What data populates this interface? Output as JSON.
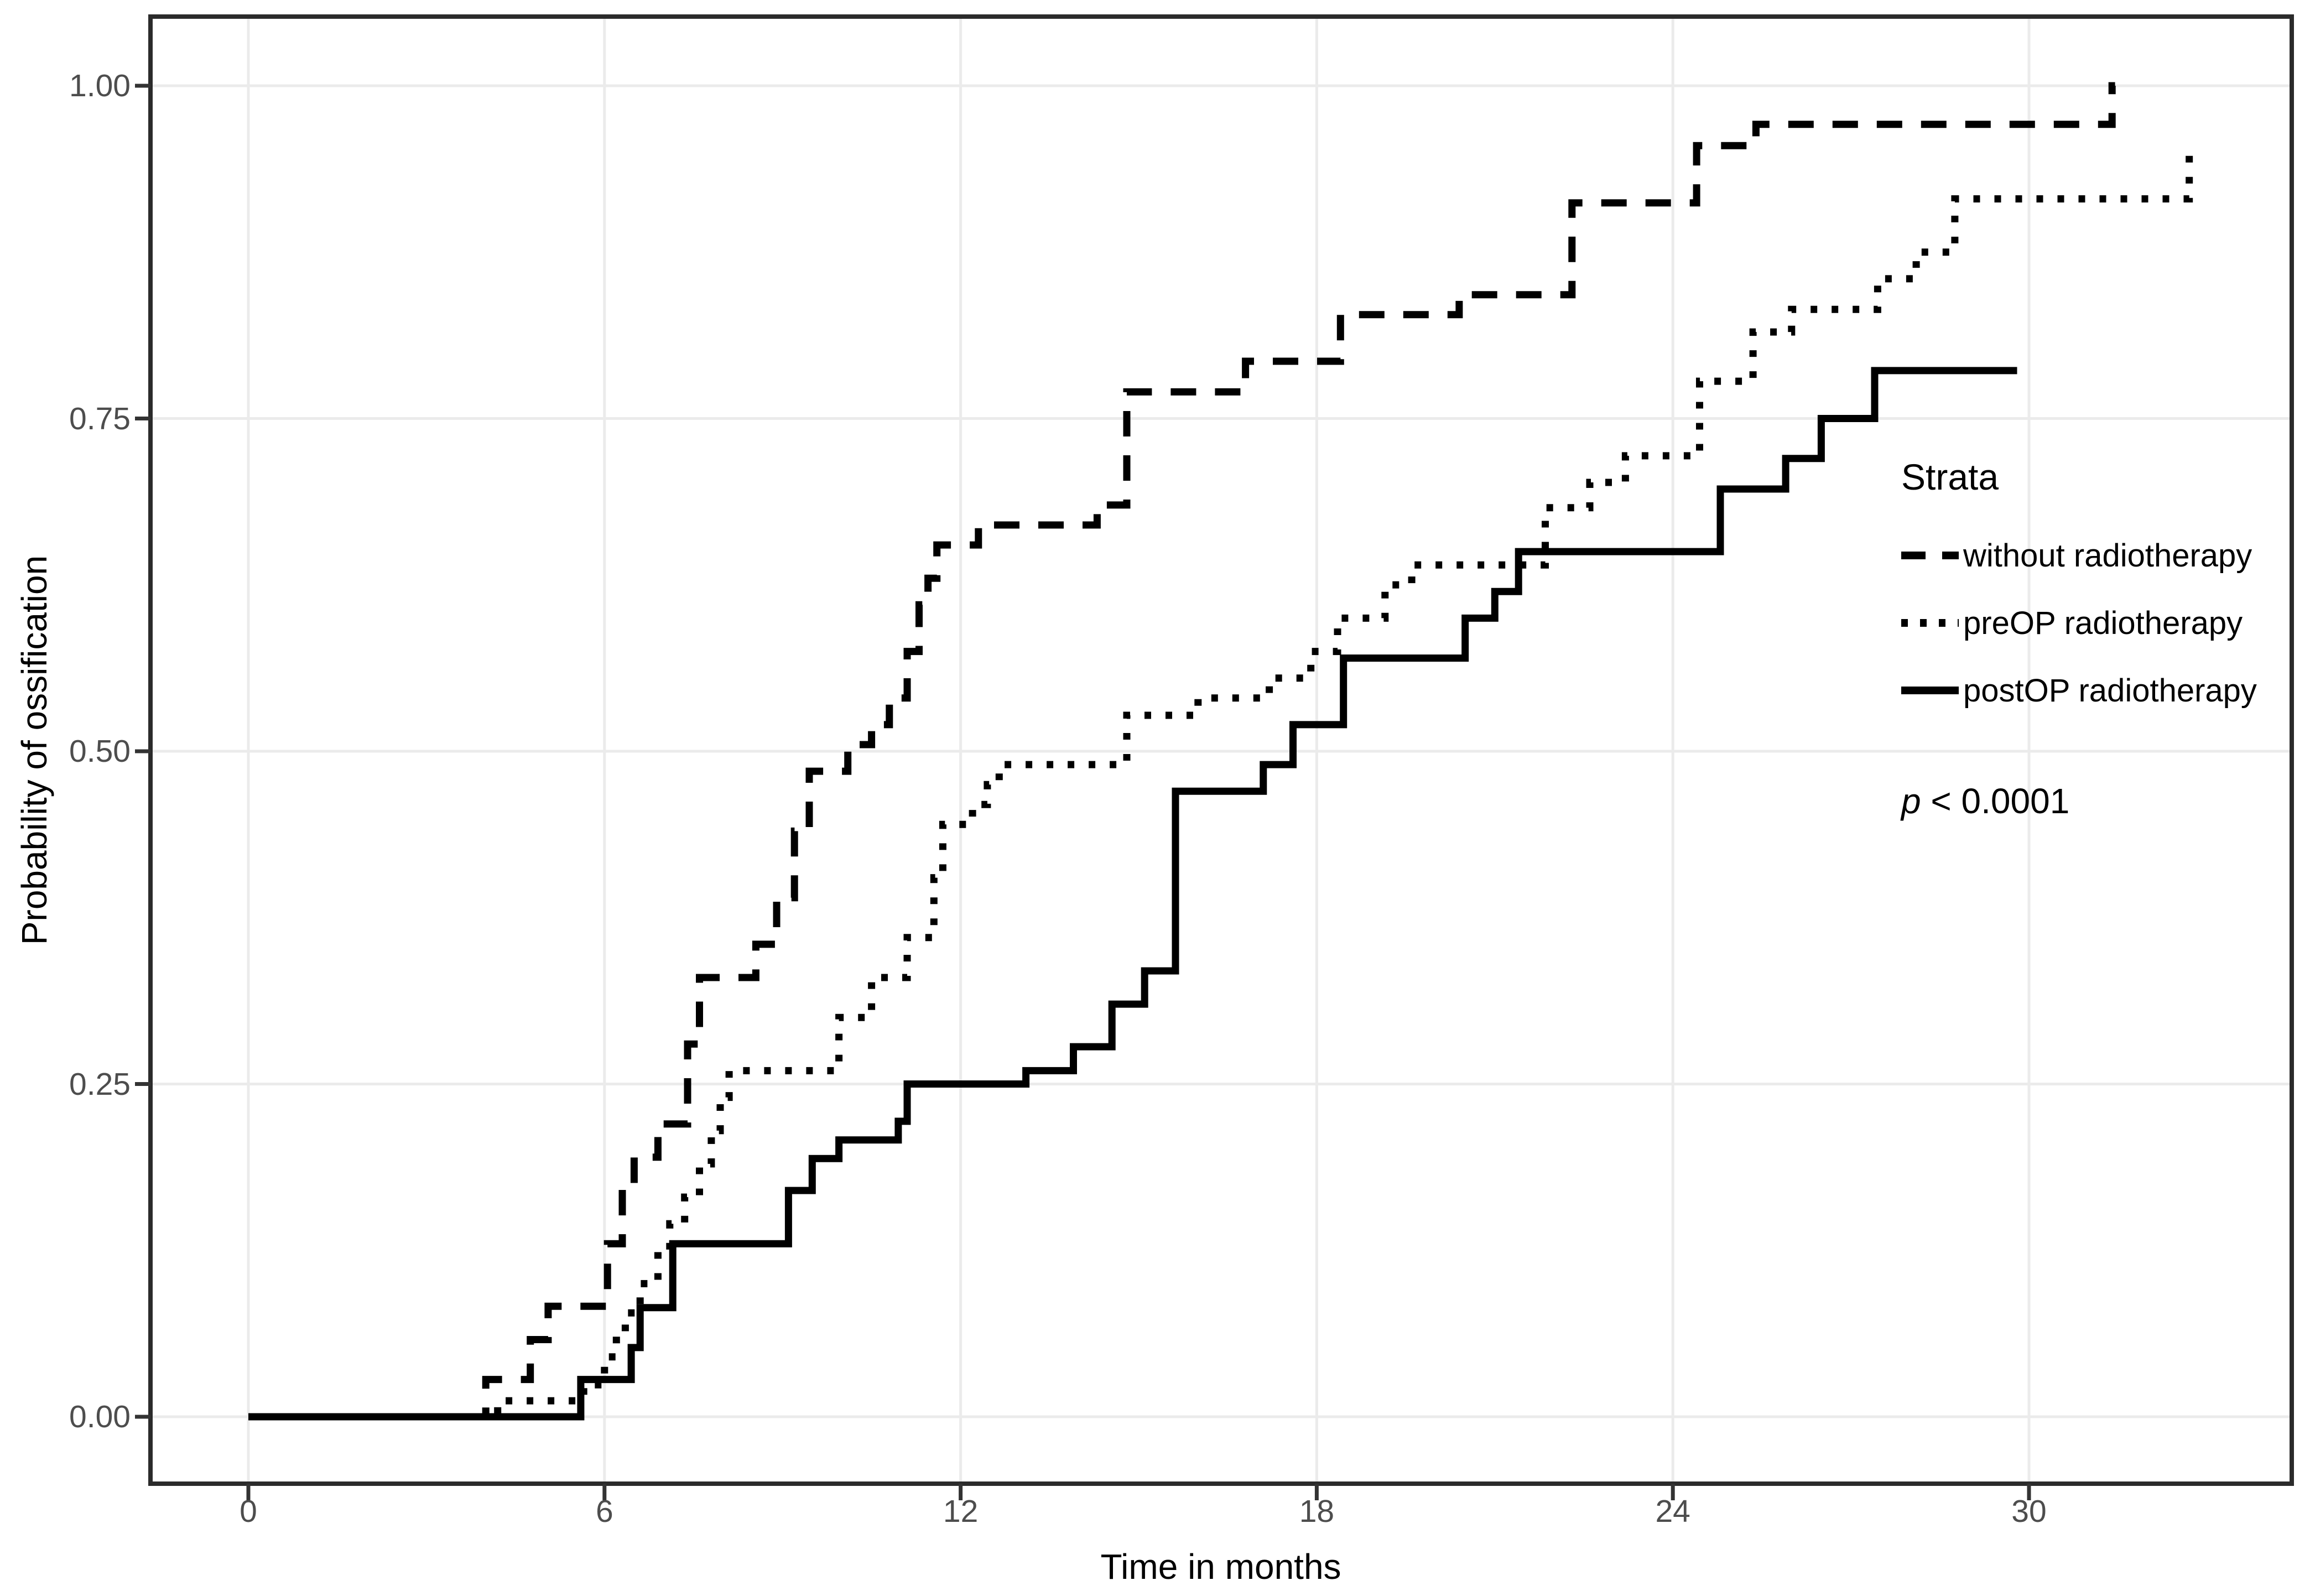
{
  "figure": {
    "background_color": "#ffffff"
  },
  "colors": {
    "curve": "#000000",
    "grid": "#ebebeb",
    "panel_border": "#2b2b2b",
    "tick_mark": "#333333",
    "tick_text": "#4d4d4d",
    "axis_title_text": "#000000"
  },
  "chart_data": {
    "type": "line",
    "subtype": "step-cumulative-incidence",
    "title": "",
    "xlabel": "Time in months",
    "ylabel": "Probability of ossification",
    "xlim": [
      -1.65,
      34.4
    ],
    "ylim": [
      -0.05,
      1.05
    ],
    "grid": "major-only",
    "legend_position": "inside-right",
    "x_ticks": [
      {
        "value": 0,
        "label": "0"
      },
      {
        "value": 6,
        "label": "6"
      },
      {
        "value": 12,
        "label": "12"
      },
      {
        "value": 18,
        "label": "18"
      },
      {
        "value": 24,
        "label": "24"
      },
      {
        "value": 30,
        "label": "30"
      }
    ],
    "y_ticks": [
      {
        "value": 0.0,
        "label": "0.00"
      },
      {
        "value": 0.25,
        "label": "0.25"
      },
      {
        "value": 0.5,
        "label": "0.50"
      },
      {
        "value": 0.75,
        "label": "0.75"
      },
      {
        "value": 1.0,
        "label": "1.00"
      }
    ],
    "legend": {
      "title": "Strata",
      "entries": [
        {
          "label": "without radiotherapy",
          "style": "dashed"
        },
        {
          "label": "preOP radiotherapy",
          "style": "dotted"
        },
        {
          "label": "postOP radiotherapy",
          "style": "solid"
        }
      ]
    },
    "annotation": {
      "symbol": "p",
      "text": " < 0.0001"
    },
    "series": [
      {
        "name": "without radiotherapy",
        "style": "dashed",
        "color": "#000000",
        "start": [
          0,
          0
        ],
        "end_x": 31.45,
        "steps": [
          [
            4.0,
            0.028
          ],
          [
            4.75,
            0.058
          ],
          [
            5.05,
            0.083
          ],
          [
            6.05,
            0.13
          ],
          [
            6.3,
            0.175
          ],
          [
            6.5,
            0.195
          ],
          [
            6.9,
            0.22
          ],
          [
            7.4,
            0.28
          ],
          [
            7.6,
            0.33
          ],
          [
            8.55,
            0.355
          ],
          [
            8.9,
            0.39
          ],
          [
            9.2,
            0.44
          ],
          [
            9.45,
            0.485
          ],
          [
            10.1,
            0.505
          ],
          [
            10.5,
            0.52
          ],
          [
            10.8,
            0.54
          ],
          [
            11.1,
            0.575
          ],
          [
            11.3,
            0.61
          ],
          [
            11.45,
            0.63
          ],
          [
            11.6,
            0.655
          ],
          [
            12.3,
            0.67
          ],
          [
            14.3,
            0.685
          ],
          [
            14.8,
            0.77
          ],
          [
            16.8,
            0.793
          ],
          [
            18.4,
            0.828
          ],
          [
            20.4,
            0.843
          ],
          [
            22.3,
            0.912
          ],
          [
            24.4,
            0.955
          ],
          [
            25.4,
            0.971
          ],
          [
            31.4,
            1.0
          ]
        ]
      },
      {
        "name": "preOP radiotherapy",
        "style": "dotted",
        "color": "#000000",
        "start": [
          0,
          0
        ],
        "end_x": 32.7,
        "steps": [
          [
            4.2,
            0.012
          ],
          [
            5.65,
            0.024
          ],
          [
            6.0,
            0.045
          ],
          [
            6.2,
            0.062
          ],
          [
            6.35,
            0.078
          ],
          [
            6.6,
            0.1
          ],
          [
            6.9,
            0.125
          ],
          [
            7.1,
            0.145
          ],
          [
            7.35,
            0.165
          ],
          [
            7.6,
            0.19
          ],
          [
            7.8,
            0.215
          ],
          [
            7.95,
            0.24
          ],
          [
            8.1,
            0.26
          ],
          [
            9.95,
            0.3
          ],
          [
            10.5,
            0.33
          ],
          [
            11.1,
            0.36
          ],
          [
            11.55,
            0.405
          ],
          [
            11.7,
            0.445
          ],
          [
            12.2,
            0.46
          ],
          [
            12.45,
            0.475
          ],
          [
            12.65,
            0.49
          ],
          [
            14.8,
            0.527
          ],
          [
            16.0,
            0.54
          ],
          [
            17.2,
            0.555
          ],
          [
            17.9,
            0.575
          ],
          [
            18.35,
            0.6
          ],
          [
            19.15,
            0.625
          ],
          [
            19.6,
            0.64
          ],
          [
            21.85,
            0.683
          ],
          [
            22.6,
            0.702
          ],
          [
            23.2,
            0.722
          ],
          [
            24.45,
            0.778
          ],
          [
            25.35,
            0.815
          ],
          [
            26.0,
            0.832
          ],
          [
            27.45,
            0.855
          ],
          [
            28.1,
            0.875
          ],
          [
            28.75,
            0.915
          ],
          [
            32.7,
            0.958
          ]
        ]
      },
      {
        "name": "postOP radiotherapy",
        "style": "solid",
        "color": "#000000",
        "start": [
          0,
          0
        ],
        "end_x": 29.8,
        "steps": [
          [
            5.6,
            0.028
          ],
          [
            6.45,
            0.052
          ],
          [
            6.6,
            0.082
          ],
          [
            7.15,
            0.13
          ],
          [
            9.1,
            0.17
          ],
          [
            9.5,
            0.194
          ],
          [
            9.95,
            0.208
          ],
          [
            10.95,
            0.222
          ],
          [
            11.1,
            0.25
          ],
          [
            13.1,
            0.26
          ],
          [
            13.9,
            0.278
          ],
          [
            14.55,
            0.31
          ],
          [
            15.1,
            0.335
          ],
          [
            15.62,
            0.47
          ],
          [
            17.1,
            0.49
          ],
          [
            17.6,
            0.52
          ],
          [
            18.45,
            0.57
          ],
          [
            20.5,
            0.6
          ],
          [
            21.0,
            0.62
          ],
          [
            21.4,
            0.65
          ],
          [
            24.8,
            0.697
          ],
          [
            25.9,
            0.72
          ],
          [
            26.5,
            0.75
          ],
          [
            27.4,
            0.786
          ]
        ]
      }
    ]
  }
}
